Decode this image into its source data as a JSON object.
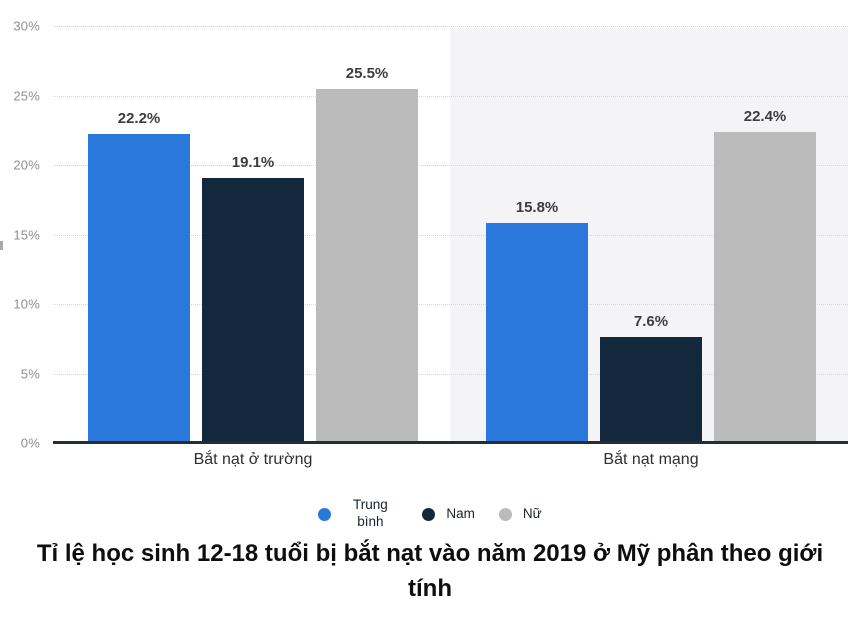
{
  "chart_data": {
    "type": "bar",
    "title": "Tỉ lệ học sinh 12-18 tuổi bị bắt nạt vào năm 2019 ở Mỹ phân theo giới tính",
    "title_lines": [
      "Tỉ lệ học sinh 12-18 tuổi bị bắt nạt vào năm 2019 ở Mỹ phân theo giới",
      "tính"
    ],
    "categories": [
      "Bắt nạt ở trường",
      "Bắt nạt mạng"
    ],
    "series": [
      {
        "name": "Trung bình",
        "values": [
          22.2,
          15.8
        ],
        "color": "#2A78DC"
      },
      {
        "name": "Nam",
        "values": [
          19.1,
          7.6
        ],
        "color": "#13283C"
      },
      {
        "name": "Nữ",
        "values": [
          25.5,
          22.4
        ],
        "color": "#BBBBBB"
      }
    ],
    "value_labels": [
      [
        "22.2%",
        "19.1%",
        "25.5%"
      ],
      [
        "15.8%",
        "7.6%",
        "22.4%"
      ]
    ],
    "xlabel": "",
    "ylabel": "",
    "ylim": [
      0,
      30
    ],
    "y_tick_step": 5,
    "y_ticks": [
      "0%",
      "5%",
      "10%",
      "15%",
      "20%",
      "25%",
      "30%"
    ],
    "grid": "horizontal-dotted",
    "legend_position": "bottom",
    "highlighted_category_index": 1
  },
  "colors": {
    "background": "#ffffff",
    "highlight_band": "#f4f4f6",
    "gridline": "#d8d8db",
    "axis_line": "#272d36",
    "tick_label": "#8f8f94",
    "value_label": "#3d3d3d",
    "category_label": "#2f2f2f",
    "legend_text": "#18222f",
    "title_text": "#0e0e0e"
  }
}
